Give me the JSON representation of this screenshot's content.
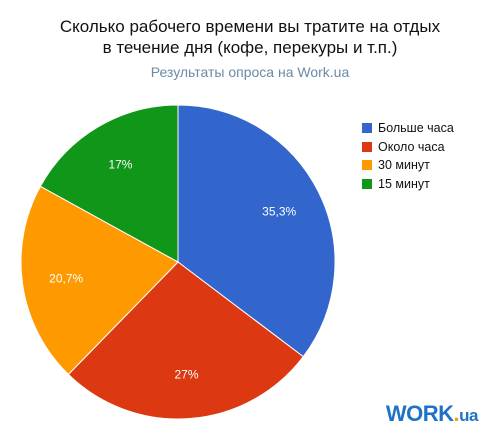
{
  "chart_data": {
    "type": "pie",
    "title_line1": "Сколько рабочего времени вы тратите на отдых",
    "title_line2": "в течение дня (кофе, перекуры и т.п.)",
    "subtitle": "Результаты опроса на Work.ua",
    "slices": [
      {
        "label": "Больше часа",
        "value": 35.3,
        "display": "35,3%",
        "color": "#3366cc"
      },
      {
        "label": "Около часа",
        "value": 27,
        "display": "27%",
        "color": "#dc3912"
      },
      {
        "label": "30 минут",
        "value": 20.7,
        "display": "20,7%",
        "color": "#ff9900"
      },
      {
        "label": "15 минут",
        "value": 17,
        "display": "17%",
        "color": "#109618"
      }
    ],
    "legend_position": "right"
  },
  "logo": {
    "work": "WORK",
    "dot": ".",
    "ua": "ua"
  }
}
